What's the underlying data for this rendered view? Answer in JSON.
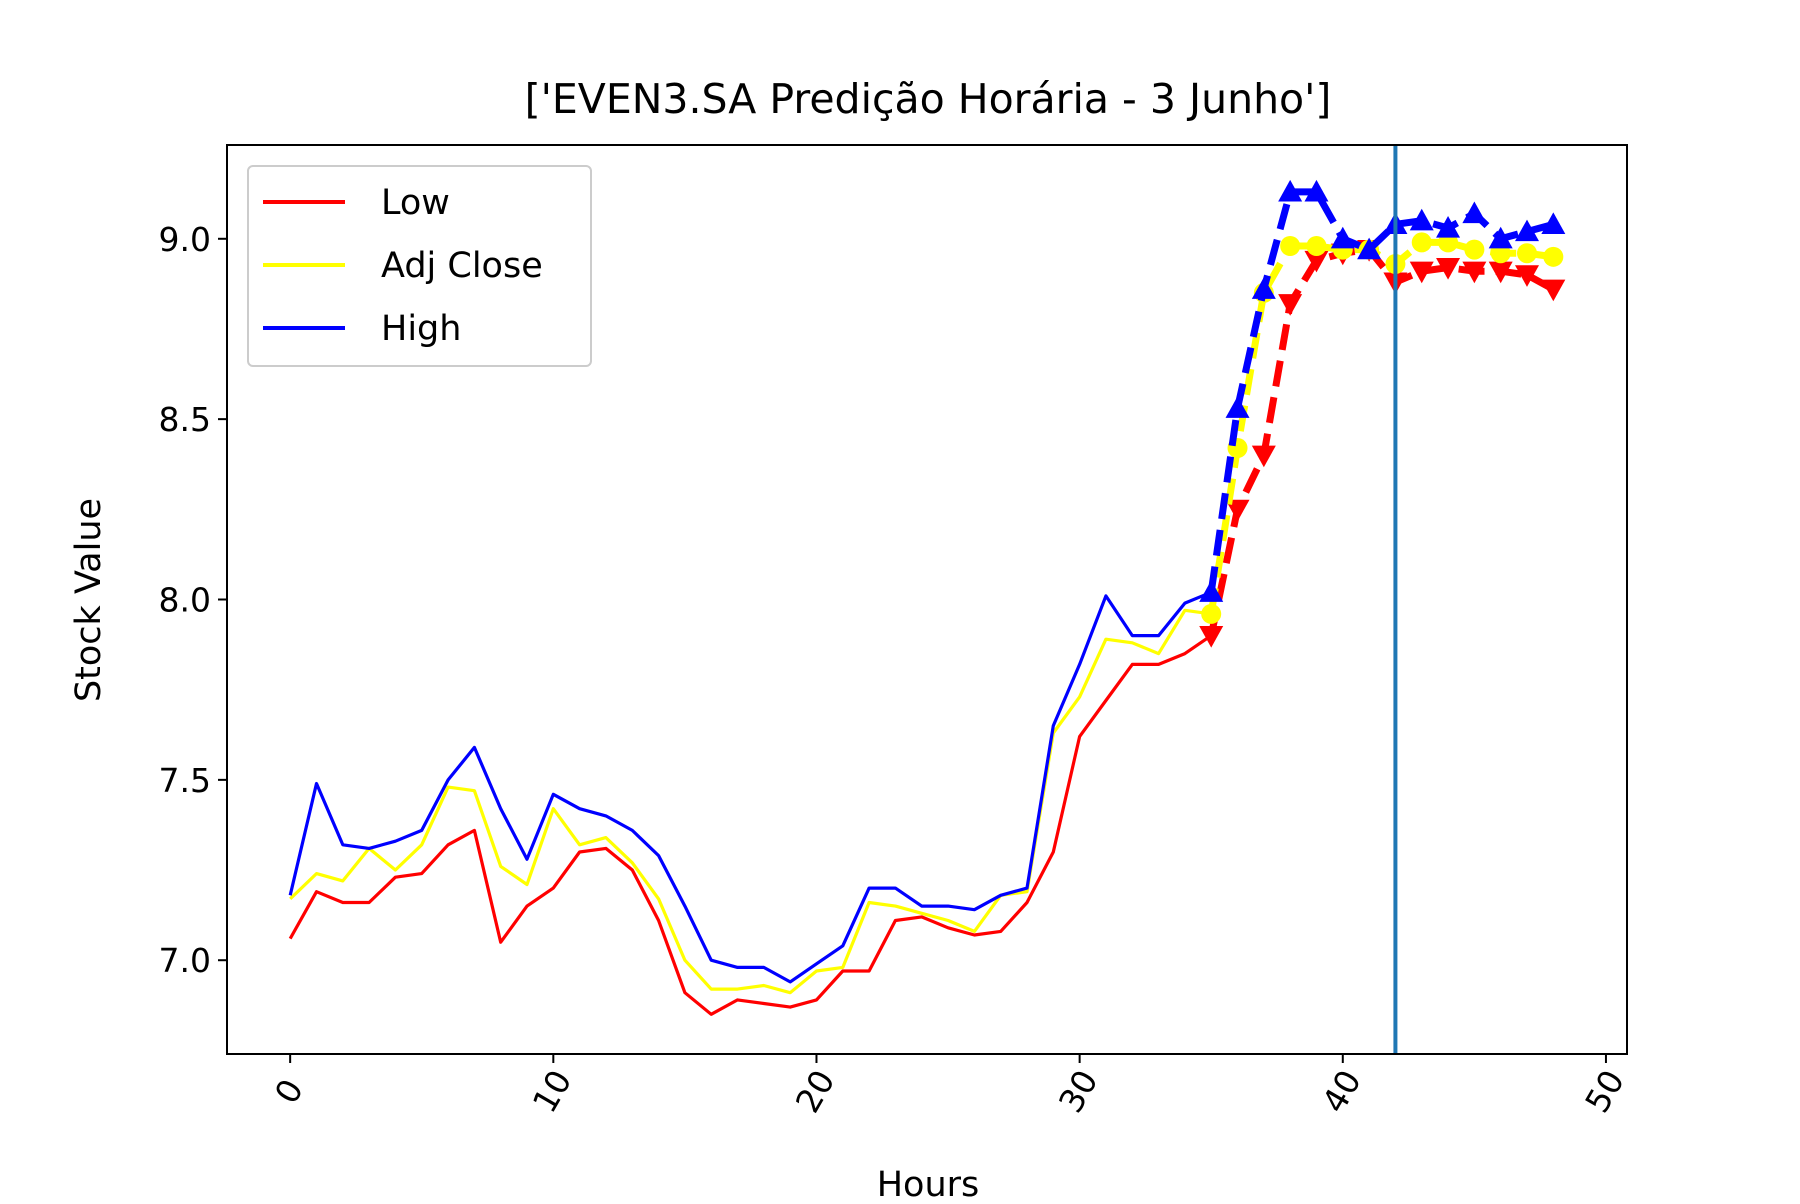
{
  "chart_data": {
    "type": "line",
    "title": "['EVEN3.SA Predição Horária - 3 Junho']",
    "xlabel": "Hours",
    "ylabel": "Stock Value",
    "xlim": [
      -2.4,
      50.8
    ],
    "ylim": [
      6.74,
      9.26
    ],
    "xticks": [
      0,
      10,
      20,
      30,
      40,
      50
    ],
    "xtick_labels": [
      "0",
      "10",
      "20",
      "30",
      "40",
      "50"
    ],
    "yticks": [
      7.0,
      7.5,
      8.0,
      8.5,
      9.0
    ],
    "ytick_labels": [
      "7.0",
      "7.5",
      "8.0",
      "8.5",
      "9.0"
    ],
    "grid": false,
    "legend_position": "top-left",
    "vline_x": 42,
    "vline_color": "#1f77b4",
    "series": [
      {
        "name": "Low",
        "color": "#ff0000",
        "x": [
          0,
          1,
          2,
          3,
          4,
          5,
          6,
          7,
          8,
          9,
          10,
          11,
          12,
          13,
          14,
          15,
          16,
          17,
          18,
          19,
          20,
          21,
          22,
          23,
          24,
          25,
          26,
          27,
          28,
          29,
          30,
          31,
          32,
          33,
          34,
          35
        ],
        "values": [
          7.06,
          7.19,
          7.16,
          7.16,
          7.23,
          7.24,
          7.32,
          7.36,
          7.05,
          7.15,
          7.2,
          7.3,
          7.31,
          7.25,
          7.11,
          6.91,
          6.85,
          6.89,
          6.88,
          6.87,
          6.89,
          6.97,
          6.97,
          7.11,
          7.12,
          7.09,
          7.07,
          7.08,
          7.16,
          7.3,
          7.62,
          7.72,
          7.82,
          7.82,
          7.85,
          7.9
        ]
      },
      {
        "name": "Adj Close",
        "color": "#ffff00",
        "x": [
          0,
          1,
          2,
          3,
          4,
          5,
          6,
          7,
          8,
          9,
          10,
          11,
          12,
          13,
          14,
          15,
          16,
          17,
          18,
          19,
          20,
          21,
          22,
          23,
          24,
          25,
          26,
          27,
          28,
          29,
          30,
          31,
          32,
          33,
          34,
          35
        ],
        "values": [
          7.17,
          7.24,
          7.22,
          7.31,
          7.25,
          7.32,
          7.48,
          7.47,
          7.26,
          7.21,
          7.42,
          7.32,
          7.34,
          7.27,
          7.17,
          7.0,
          6.92,
          6.92,
          6.93,
          6.91,
          6.97,
          6.98,
          7.16,
          7.15,
          7.13,
          7.11,
          7.08,
          7.18,
          7.19,
          7.63,
          7.73,
          7.89,
          7.88,
          7.85,
          7.97,
          7.96
        ]
      },
      {
        "name": "High",
        "color": "#0000ff",
        "x": [
          0,
          1,
          2,
          3,
          4,
          5,
          6,
          7,
          8,
          9,
          10,
          11,
          12,
          13,
          14,
          15,
          16,
          17,
          18,
          19,
          20,
          21,
          22,
          23,
          24,
          25,
          26,
          27,
          28,
          29,
          30,
          31,
          32,
          33,
          34,
          35
        ],
        "values": [
          7.18,
          7.49,
          7.32,
          7.31,
          7.33,
          7.36,
          7.5,
          7.59,
          7.42,
          7.28,
          7.46,
          7.42,
          7.4,
          7.36,
          7.29,
          7.15,
          7.0,
          6.98,
          6.98,
          6.94,
          6.99,
          7.04,
          7.2,
          7.2,
          7.15,
          7.15,
          7.14,
          7.18,
          7.2,
          7.65,
          7.82,
          8.01,
          7.9,
          7.9,
          7.99,
          8.02
        ]
      }
    ],
    "prediction_series": [
      {
        "of": "Low",
        "color": "#ff0000",
        "marker": "triangle-down",
        "x": [
          35,
          36,
          37,
          38,
          39,
          40,
          41,
          42,
          43,
          44,
          45,
          46,
          47,
          48
        ],
        "values": [
          7.9,
          8.25,
          8.4,
          8.82,
          8.94,
          8.96,
          8.97,
          8.88,
          8.91,
          8.92,
          8.91,
          8.91,
          8.9,
          8.86
        ]
      },
      {
        "of": "Adj Close",
        "color": "#ffff00",
        "marker": "circle",
        "x": [
          35,
          36,
          37,
          38,
          39,
          40,
          41,
          42,
          43,
          44,
          45,
          46,
          47,
          48
        ],
        "values": [
          7.96,
          8.42,
          8.85,
          8.98,
          8.98,
          8.97,
          8.97,
          8.93,
          8.99,
          8.99,
          8.97,
          8.96,
          8.96,
          8.95
        ]
      },
      {
        "of": "High",
        "color": "#0000ff",
        "marker": "triangle-up",
        "x": [
          35,
          36,
          37,
          38,
          39,
          40,
          41,
          42,
          43,
          44,
          45,
          46,
          47,
          48
        ],
        "values": [
          8.02,
          8.53,
          8.86,
          9.13,
          9.13,
          9.0,
          8.97,
          9.04,
          9.05,
          9.03,
          9.07,
          9.0,
          9.02,
          9.04
        ]
      }
    ]
  }
}
